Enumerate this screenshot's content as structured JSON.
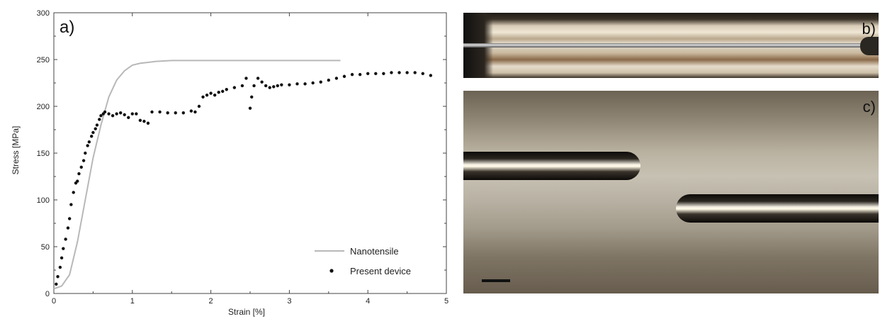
{
  "panels": {
    "a": "a)",
    "b": "b)",
    "c": "c)"
  },
  "chart_data": {
    "type": "line",
    "title": "",
    "xlabel": "Strain [%]",
    "ylabel": "Stress [MPa]",
    "xlim": [
      0,
      5
    ],
    "ylim": [
      0,
      300
    ],
    "xticks": [
      0,
      1,
      2,
      3,
      4,
      5
    ],
    "yticks": [
      0,
      50,
      100,
      150,
      200,
      250,
      300
    ],
    "grid": false,
    "legend_position": "bottom-right",
    "series": [
      {
        "name": "Nanotensile",
        "style": "line",
        "color": "#b8b8b8",
        "x": [
          0,
          0.1,
          0.2,
          0.3,
          0.4,
          0.5,
          0.6,
          0.7,
          0.8,
          0.9,
          1.0,
          1.1,
          1.2,
          1.3,
          1.5,
          1.8,
          2.2,
          2.6,
          3.0,
          3.4,
          3.65
        ],
        "y": [
          5,
          8,
          20,
          55,
          100,
          145,
          180,
          210,
          228,
          238,
          244,
          246,
          247,
          248,
          249,
          249,
          249,
          249,
          249,
          249,
          249
        ]
      },
      {
        "name": "Present device",
        "style": "scatter",
        "color": "#111111",
        "x": [
          0.03,
          0.05,
          0.08,
          0.1,
          0.12,
          0.15,
          0.18,
          0.2,
          0.22,
          0.25,
          0.28,
          0.3,
          0.32,
          0.35,
          0.38,
          0.4,
          0.43,
          0.45,
          0.48,
          0.5,
          0.53,
          0.55,
          0.58,
          0.6,
          0.63,
          0.65,
          0.7,
          0.75,
          0.8,
          0.85,
          0.9,
          0.95,
          1.0,
          1.05,
          1.1,
          1.15,
          1.2,
          1.25,
          1.35,
          1.45,
          1.55,
          1.65,
          1.75,
          1.8,
          1.85,
          1.9,
          1.95,
          2.0,
          2.05,
          2.1,
          2.15,
          2.2,
          2.3,
          2.4,
          2.45,
          2.5,
          2.52,
          2.55,
          2.6,
          2.65,
          2.7,
          2.75,
          2.8,
          2.85,
          2.9,
          3.0,
          3.1,
          3.2,
          3.3,
          3.4,
          3.5,
          3.6,
          3.7,
          3.8,
          3.9,
          4.0,
          4.1,
          4.2,
          4.3,
          4.4,
          4.5,
          4.6,
          4.7,
          4.8
        ],
        "y": [
          10,
          18,
          28,
          38,
          48,
          58,
          70,
          80,
          95,
          108,
          118,
          120,
          128,
          135,
          142,
          150,
          158,
          162,
          168,
          172,
          176,
          180,
          186,
          190,
          192,
          194,
          192,
          190,
          192,
          193,
          191,
          188,
          192,
          192,
          185,
          184,
          182,
          194,
          194,
          193,
          193,
          193,
          195,
          194,
          200,
          210,
          212,
          214,
          212,
          215,
          216,
          218,
          220,
          222,
          230,
          198,
          210,
          222,
          230,
          226,
          222,
          220,
          221,
          222,
          223,
          223,
          224,
          224,
          225,
          226,
          228,
          230,
          232,
          234,
          234,
          235,
          235,
          235,
          236,
          236,
          236,
          236,
          235,
          233
        ]
      }
    ]
  }
}
